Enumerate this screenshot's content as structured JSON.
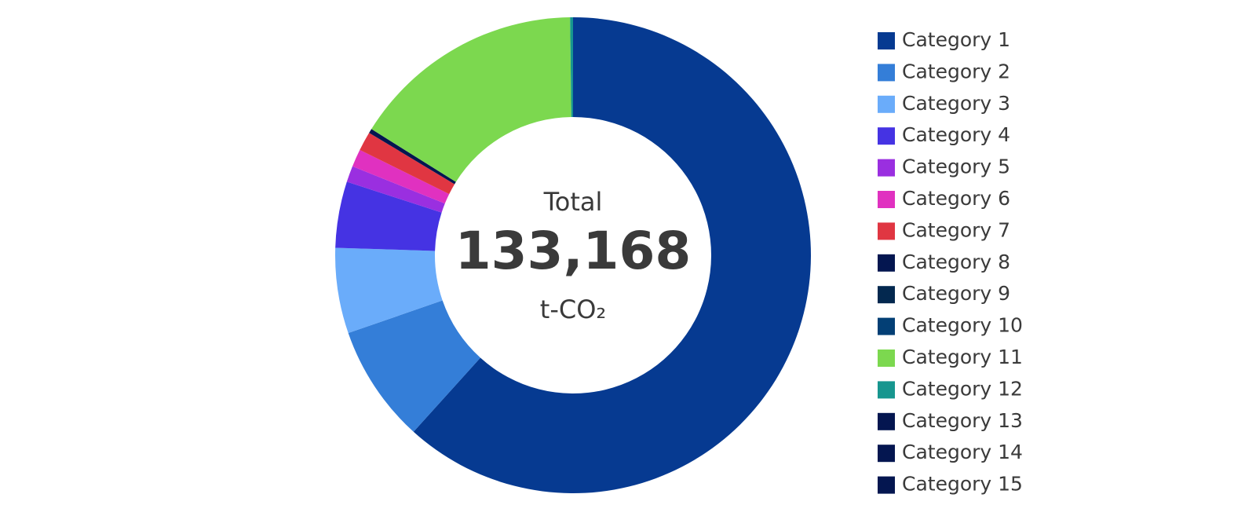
{
  "chart_data": {
    "type": "donut",
    "center_label": "Total",
    "center_value": "133,168",
    "center_unit": "t-CO₂",
    "categories": [
      "Category 1",
      "Category 2",
      "Category 3",
      "Category 4",
      "Category 5",
      "Category 6",
      "Category 7",
      "Category 8",
      "Category 9",
      "Category 10",
      "Category 11",
      "Category 12",
      "Category 13",
      "Category 14",
      "Category 15"
    ],
    "values": [
      61.7,
      8.0,
      5.8,
      4.5,
      1.1,
      1.2,
      1.3,
      0.3,
      0,
      0,
      15.9,
      0.2,
      0,
      0,
      0
    ],
    "colors": [
      "#063a91",
      "#347ed8",
      "#6aacfa",
      "#4533e3",
      "#9a2fe0",
      "#e031c0",
      "#e03642",
      "#041650",
      "#03284f",
      "#033f75",
      "#7cd84f",
      "#17968f",
      "#041650",
      "#041650",
      "#041650"
    ],
    "legend": "right"
  }
}
